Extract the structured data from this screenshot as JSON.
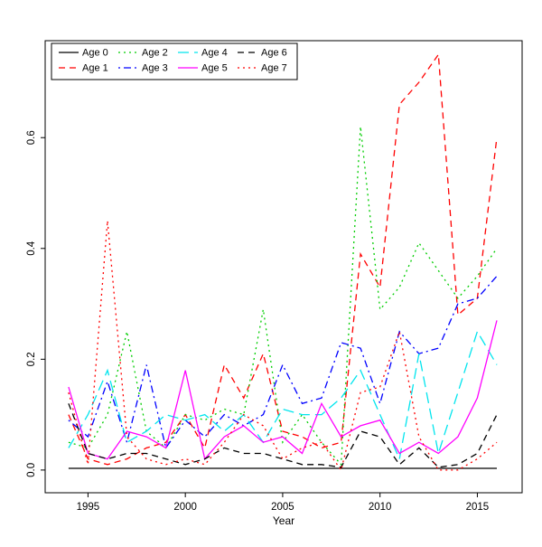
{
  "chart_data": {
    "type": "line",
    "title": "",
    "xlabel": "Year",
    "ylabel": "",
    "grid": false,
    "legend_position": "top-left",
    "x": [
      1994,
      1995,
      1996,
      1997,
      1998,
      1999,
      2000,
      2001,
      2002,
      2003,
      2004,
      2005,
      2006,
      2007,
      2008,
      2009,
      2010,
      2011,
      2012,
      2013,
      2014,
      2015,
      2016
    ],
    "xlim": [
      1992.8,
      2017.3
    ],
    "ylim": [
      -0.041,
      0.775
    ],
    "xticks": [
      1995,
      2000,
      2005,
      2010,
      2015
    ],
    "xtick_labels": [
      "1995",
      "2000",
      "2005",
      "2010",
      "2015"
    ],
    "yticks": [
      0.0,
      0.2,
      0.4,
      0.6
    ],
    "ytick_labels": [
      "0.0",
      "0.2",
      "0.4",
      "0.6"
    ],
    "series": [
      {
        "name": "Age 0",
        "color": "#000000",
        "dash": "solid",
        "values": [
          0.003,
          0.003,
          0.003,
          0.003,
          0.003,
          0.003,
          0.003,
          0.003,
          0.003,
          0.003,
          0.003,
          0.003,
          0.003,
          0.003,
          0.003,
          0.003,
          0.003,
          0.003,
          0.003,
          0.003,
          0.003,
          0.003,
          0.003
        ]
      },
      {
        "name": "Age 1",
        "color": "#ff0000",
        "dash": "dashed",
        "values": [
          0.1,
          0.02,
          0.01,
          0.02,
          0.04,
          0.05,
          0.1,
          0.04,
          0.19,
          0.13,
          0.21,
          0.07,
          0.06,
          0.04,
          0.05,
          0.39,
          0.33,
          0.66,
          0.7,
          0.75,
          0.28,
          0.31,
          0.6
        ]
      },
      {
        "name": "Age 2",
        "color": "#00cd00",
        "dash": "dotted",
        "values": [
          0.05,
          0.04,
          0.1,
          0.25,
          0.07,
          0.04,
          0.1,
          0.09,
          0.11,
          0.1,
          0.29,
          0.05,
          0.1,
          0.05,
          0.01,
          0.62,
          0.29,
          0.33,
          0.41,
          0.36,
          0.31,
          0.35,
          0.4
        ]
      },
      {
        "name": "Age 3",
        "color": "#0000ff",
        "dash": "dotdash",
        "values": [
          0.09,
          0.06,
          0.16,
          0.05,
          0.19,
          0.04,
          0.09,
          0.06,
          0.1,
          0.08,
          0.1,
          0.19,
          0.12,
          0.13,
          0.23,
          0.22,
          0.12,
          0.25,
          0.21,
          0.22,
          0.3,
          0.31,
          0.35
        ]
      },
      {
        "name": "Age 4",
        "color": "#00e5ee",
        "dash": "longdash",
        "values": [
          0.04,
          0.1,
          0.18,
          0.05,
          0.07,
          0.1,
          0.09,
          0.1,
          0.07,
          0.1,
          0.05,
          0.11,
          0.1,
          0.1,
          0.13,
          0.18,
          0.1,
          0.02,
          0.21,
          0.03,
          0.14,
          0.25,
          0.19
        ]
      },
      {
        "name": "Age 5",
        "color": "#ff00ff",
        "dash": "solid",
        "values": [
          0.15,
          0.03,
          0.02,
          0.07,
          0.06,
          0.04,
          0.18,
          0.02,
          0.06,
          0.08,
          0.05,
          0.06,
          0.03,
          0.12,
          0.06,
          0.08,
          0.09,
          0.03,
          0.05,
          0.03,
          0.06,
          0.13,
          0.27
        ]
      },
      {
        "name": "Age 6",
        "color": "#000000",
        "dash": "dashed",
        "values": [
          0.12,
          0.03,
          0.02,
          0.03,
          0.03,
          0.02,
          0.01,
          0.02,
          0.04,
          0.03,
          0.03,
          0.02,
          0.01,
          0.01,
          0.005,
          0.07,
          0.06,
          0.01,
          0.04,
          0.005,
          0.01,
          0.03,
          0.1
        ]
      },
      {
        "name": "Age 7",
        "color": "#ff0000",
        "dash": "dotted",
        "values": [
          0.14,
          0.01,
          0.45,
          0.06,
          0.02,
          0.01,
          0.02,
          0.01,
          0.05,
          0.1,
          0.08,
          0.02,
          0.04,
          0.05,
          0.0,
          0.14,
          0.15,
          0.25,
          0.06,
          0.0,
          0.0,
          0.02,
          0.05
        ]
      }
    ]
  }
}
